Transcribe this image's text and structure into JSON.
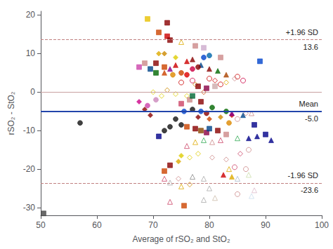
{
  "chart_data": {
    "type": "scatter",
    "xlabel": "Average of rSO₂ and StO₂",
    "ylabel": "rSO₂ - StO₂",
    "xlim": [
      50,
      100
    ],
    "ylim": [
      -32,
      21
    ],
    "xticks": [
      50,
      60,
      70,
      80,
      90,
      100
    ],
    "yticks": [
      -30,
      -20,
      -10,
      0,
      10,
      20
    ],
    "grid": false,
    "reference_lines": [
      {
        "y": 0,
        "color": "#c8a0a0",
        "line_style": "solid"
      },
      {
        "y": -5.0,
        "color": "#2244aa",
        "line_style": "solid",
        "label": "Mean",
        "value_label": "-5.0"
      },
      {
        "y": 13.6,
        "color": "#c08080",
        "line_style": "dashed",
        "label": "+1.96 SD",
        "value_label": "13.6"
      },
      {
        "y": -23.6,
        "color": "#c08080",
        "line_style": "dashed",
        "label": "-1.96 SD",
        "value_label": "-23.6"
      }
    ],
    "points": [
      {
        "x": 57.0,
        "y": -8.0,
        "marker": "circle",
        "color": "#111111"
      },
      {
        "x": 50.5,
        "y": -31.5,
        "marker": "square",
        "color": "#444444"
      },
      {
        "x": 67.5,
        "y": 6.5,
        "marker": "square",
        "color": "#cc44aa"
      },
      {
        "x": 68.5,
        "y": 7.5,
        "marker": "square",
        "color": "#cc8888"
      },
      {
        "x": 67.5,
        "y": -2.5,
        "marker": "diamond",
        "color": "#cc0088"
      },
      {
        "x": 68.5,
        "y": -4.5,
        "marker": "diamond",
        "color": "#880000"
      },
      {
        "x": 69.0,
        "y": -3.5,
        "marker": "circle",
        "color": "#cc44aa"
      },
      {
        "x": 70.5,
        "y": -2.0,
        "marker": "circle",
        "color": "#cc88bb"
      },
      {
        "x": 69.0,
        "y": 19.0,
        "marker": "square",
        "color": "#e8c000"
      },
      {
        "x": 72.5,
        "y": 18.0,
        "marker": "square",
        "color": "#880000"
      },
      {
        "x": 71.0,
        "y": 15.5,
        "marker": "square",
        "color": "#cc4400"
      },
      {
        "x": 72.5,
        "y": 14.5,
        "marker": "square",
        "color": "#cc0000"
      },
      {
        "x": 73.0,
        "y": 13.5,
        "marker": "square",
        "color": "#880000"
      },
      {
        "x": 75.0,
        "y": 13.0,
        "marker": "triangle-open",
        "color": "#ddaa00"
      },
      {
        "x": 77.5,
        "y": 12.0,
        "marker": "square",
        "color": "#cc8888"
      },
      {
        "x": 79.0,
        "y": 11.5,
        "marker": "square",
        "color": "#ccaacc"
      },
      {
        "x": 71.0,
        "y": 10.0,
        "marker": "diamond",
        "color": "#ddaa00"
      },
      {
        "x": 72.0,
        "y": 10.0,
        "marker": "diamond",
        "color": "#cc8800"
      },
      {
        "x": 74.0,
        "y": 9.0,
        "marker": "diamond",
        "color": "#ddcc00"
      },
      {
        "x": 79.0,
        "y": 9.0,
        "marker": "circle",
        "color": "#0044cc"
      },
      {
        "x": 80.0,
        "y": 9.5,
        "marker": "circle",
        "color": "#0066aa"
      },
      {
        "x": 82.0,
        "y": 9.0,
        "marker": "square",
        "color": "#cc8888"
      },
      {
        "x": 89.0,
        "y": 8.0,
        "marker": "square",
        "color": "#0044cc"
      },
      {
        "x": 76.0,
        "y": 8.0,
        "marker": "triangle",
        "color": "#cc0000"
      },
      {
        "x": 77.0,
        "y": 8.5,
        "marker": "triangle",
        "color": "#880000"
      },
      {
        "x": 78.5,
        "y": 7.0,
        "marker": "triangle",
        "color": "#004488"
      },
      {
        "x": 70.5,
        "y": 7.5,
        "marker": "square",
        "color": "#880000"
      },
      {
        "x": 72.0,
        "y": 6.5,
        "marker": "square",
        "color": "#cc4400"
      },
      {
        "x": 69.5,
        "y": 6.0,
        "marker": "square",
        "color": "#004488"
      },
      {
        "x": 70.5,
        "y": 5.0,
        "marker": "square",
        "color": "#006600"
      },
      {
        "x": 73.5,
        "y": 4.5,
        "marker": "circle",
        "color": "#dd8800"
      },
      {
        "x": 75.0,
        "y": 5.0,
        "marker": "circle",
        "color": "#cc4400"
      },
      {
        "x": 76.0,
        "y": 4.5,
        "marker": "circle",
        "color": "#dd0000"
      },
      {
        "x": 77.0,
        "y": 6.0,
        "marker": "circle",
        "color": "#cc0044"
      },
      {
        "x": 78.0,
        "y": 6.5,
        "marker": "circle",
        "color": "#880000"
      },
      {
        "x": 80.0,
        "y": 6.0,
        "marker": "triangle",
        "color": "#880000"
      },
      {
        "x": 81.5,
        "y": 5.5,
        "marker": "triangle",
        "color": "#006600"
      },
      {
        "x": 83.0,
        "y": 4.5,
        "marker": "triangle",
        "color": "#aa4400"
      },
      {
        "x": 85.0,
        "y": 4.0,
        "marker": "circle-open",
        "color": "#cc0000"
      },
      {
        "x": 86.0,
        "y": 3.0,
        "marker": "circle-open",
        "color": "#cc0044"
      },
      {
        "x": 72.0,
        "y": 5.0,
        "marker": "triangle",
        "color": "#cc4400"
      },
      {
        "x": 73.0,
        "y": 6.0,
        "marker": "triangle",
        "color": "#880088"
      },
      {
        "x": 74.0,
        "y": 7.0,
        "marker": "triangle",
        "color": "#cc0000"
      },
      {
        "x": 81.0,
        "y": 3.0,
        "marker": "diamond-open",
        "color": "#cc0000"
      },
      {
        "x": 83.0,
        "y": 2.5,
        "marker": "diamond-open",
        "color": "#ddaa00"
      },
      {
        "x": 84.5,
        "y": 3.5,
        "marker": "diamond-open",
        "color": "#cc8888"
      },
      {
        "x": 75.0,
        "y": 2.5,
        "marker": "circle-open",
        "color": "#cc0000"
      },
      {
        "x": 77.0,
        "y": 3.0,
        "marker": "circle-open",
        "color": "#cc0044"
      },
      {
        "x": 80.0,
        "y": 3.5,
        "marker": "circle-open",
        "color": "#cc0000"
      },
      {
        "x": 82.0,
        "y": 2.0,
        "marker": "circle-open",
        "color": "#cc0000"
      },
      {
        "x": 77.5,
        "y": 2.0,
        "marker": "diamond-open",
        "color": "#cc8800"
      },
      {
        "x": 79.0,
        "y": 0.0,
        "marker": "diamond-open",
        "color": "#cc4400"
      },
      {
        "x": 78.0,
        "y": 1.5,
        "marker": "square",
        "color": "#880000"
      },
      {
        "x": 79.5,
        "y": 1.0,
        "marker": "square",
        "color": "#880044"
      },
      {
        "x": 81.0,
        "y": 1.5,
        "marker": "square",
        "color": "#ccaaaa"
      },
      {
        "x": 70.0,
        "y": 0.0,
        "marker": "diamond-open",
        "color": "#ddcc00"
      },
      {
        "x": 71.5,
        "y": -1.0,
        "marker": "diamond-open",
        "color": "#ddcc00"
      },
      {
        "x": 72.5,
        "y": 0.5,
        "marker": "diamond-open",
        "color": "#cc8800"
      },
      {
        "x": 74.0,
        "y": -0.5,
        "marker": "diamond-open",
        "color": "#ddcc00"
      },
      {
        "x": 76.0,
        "y": -1.0,
        "marker": "diamond-open",
        "color": "#ddcc00"
      },
      {
        "x": 75.0,
        "y": -3.0,
        "marker": "square",
        "color": "#cc4466"
      },
      {
        "x": 76.5,
        "y": -2.0,
        "marker": "square",
        "color": "#cc8888"
      },
      {
        "x": 77.0,
        "y": -1.0,
        "marker": "square",
        "color": "#006633"
      },
      {
        "x": 78.5,
        "y": -2.5,
        "marker": "square",
        "color": "#880000"
      },
      {
        "x": 69.5,
        "y": -6.0,
        "marker": "diamond",
        "color": "#880000"
      },
      {
        "x": 75.5,
        "y": -5.0,
        "marker": "circle",
        "color": "#0044cc"
      },
      {
        "x": 77.0,
        "y": -4.5,
        "marker": "circle",
        "color": "#111111"
      },
      {
        "x": 78.5,
        "y": -5.0,
        "marker": "circle",
        "color": "#0044cc"
      },
      {
        "x": 79.5,
        "y": -5.5,
        "marker": "circle",
        "color": "#880000"
      },
      {
        "x": 80.5,
        "y": -4.0,
        "marker": "circle",
        "color": "#006600"
      },
      {
        "x": 78.0,
        "y": -6.5,
        "marker": "diamond",
        "color": "#880000"
      },
      {
        "x": 80.0,
        "y": -7.0,
        "marker": "diamond",
        "color": "#cc4400"
      },
      {
        "x": 82.0,
        "y": -6.5,
        "marker": "diamond",
        "color": "#cc8800"
      },
      {
        "x": 84.0,
        "y": -6.0,
        "marker": "diamond",
        "color": "#cc0000"
      },
      {
        "x": 86.5,
        "y": -5.5,
        "marker": "diamond-open",
        "color": "#cc8888"
      },
      {
        "x": 75.0,
        "y": -8.5,
        "marker": "circle",
        "color": "#111111"
      },
      {
        "x": 76.0,
        "y": -9.0,
        "marker": "square",
        "color": "#cc4400"
      },
      {
        "x": 77.5,
        "y": -9.5,
        "marker": "square",
        "color": "#880000"
      },
      {
        "x": 78.5,
        "y": -10.0,
        "marker": "square",
        "color": "#884400"
      },
      {
        "x": 79.5,
        "y": -10.5,
        "marker": "square",
        "color": "#880044"
      },
      {
        "x": 80.0,
        "y": -9.5,
        "marker": "square",
        "color": "#004488"
      },
      {
        "x": 81.5,
        "y": -10.0,
        "marker": "square",
        "color": "#880000"
      },
      {
        "x": 83.0,
        "y": -11.0,
        "marker": "square",
        "color": "#cc8888"
      },
      {
        "x": 71.0,
        "y": -11.5,
        "marker": "square",
        "color": "#000088"
      },
      {
        "x": 72.0,
        "y": -10.0,
        "marker": "circle",
        "color": "#111111"
      },
      {
        "x": 73.0,
        "y": -9.0,
        "marker": "circle",
        "color": "#111111"
      },
      {
        "x": 74.0,
        "y": -7.0,
        "marker": "circle",
        "color": "#111111"
      },
      {
        "x": 76.0,
        "y": -14.0,
        "marker": "triangle-open",
        "color": "#cc4466"
      },
      {
        "x": 77.5,
        "y": -13.0,
        "marker": "triangle-open",
        "color": "#ddaa00"
      },
      {
        "x": 79.0,
        "y": -12.5,
        "marker": "triangle-open",
        "color": "#33aa55"
      },
      {
        "x": 80.5,
        "y": -13.0,
        "marker": "triangle-open",
        "color": "#cc8888"
      },
      {
        "x": 82.0,
        "y": -12.5,
        "marker": "triangle-open",
        "color": "#cc4466"
      },
      {
        "x": 85.0,
        "y": -12.0,
        "marker": "triangle-open",
        "color": "#33aa55"
      },
      {
        "x": 87.0,
        "y": -12.0,
        "marker": "triangle",
        "color": "#000088"
      },
      {
        "x": 90.0,
        "y": -11.0,
        "marker": "square",
        "color": "#000088"
      },
      {
        "x": 91.0,
        "y": -12.5,
        "marker": "triangle",
        "color": "#000088"
      },
      {
        "x": 76.5,
        "y": -17.0,
        "marker": "diamond-open",
        "color": "#ddcc00"
      },
      {
        "x": 78.0,
        "y": -16.0,
        "marker": "diamond-open",
        "color": "#ddcc00"
      },
      {
        "x": 80.5,
        "y": -17.0,
        "marker": "diamond-open",
        "color": "#cc8888"
      },
      {
        "x": 83.0,
        "y": -17.5,
        "marker": "diamond-open",
        "color": "#cc8888"
      },
      {
        "x": 85.5,
        "y": -16.0,
        "marker": "diamond-open",
        "color": "#cc4466"
      },
      {
        "x": 87.0,
        "y": -15.0,
        "marker": "circle-open",
        "color": "#cc8888"
      },
      {
        "x": 72.0,
        "y": -20.5,
        "marker": "square",
        "color": "#cc4400"
      },
      {
        "x": 73.0,
        "y": -19.0,
        "marker": "square",
        "color": "#880000"
      },
      {
        "x": 74.5,
        "y": -18.0,
        "marker": "diamond",
        "color": "#ddaa00"
      },
      {
        "x": 75.0,
        "y": -16.5,
        "marker": "diamond",
        "color": "#ddcc00"
      },
      {
        "x": 72.0,
        "y": -22.5,
        "marker": "triangle-open",
        "color": "#cc4466"
      },
      {
        "x": 73.0,
        "y": -23.5,
        "marker": "triangle-open",
        "color": "#aaaaaa"
      },
      {
        "x": 75.0,
        "y": -24.5,
        "marker": "triangle-open",
        "color": "#ddaa00"
      },
      {
        "x": 77.0,
        "y": -22.0,
        "marker": "triangle-open",
        "color": "#888888"
      },
      {
        "x": 79.0,
        "y": -22.5,
        "marker": "triangle-open",
        "color": "#aaaaaa"
      },
      {
        "x": 80.0,
        "y": -25.0,
        "marker": "triangle-open",
        "color": "#aaaaaa"
      },
      {
        "x": 82.5,
        "y": -21.5,
        "marker": "triangle",
        "color": "#cc0000"
      },
      {
        "x": 84.0,
        "y": -22.0,
        "marker": "triangle",
        "color": "#ddaa00"
      },
      {
        "x": 85.0,
        "y": -22.5,
        "marker": "triangle-open",
        "color": "#aabbcc"
      },
      {
        "x": 87.0,
        "y": -21.5,
        "marker": "triangle-open",
        "color": "#ccddaa"
      },
      {
        "x": 73.0,
        "y": -28.5,
        "marker": "triangle-open",
        "color": "#cc4466"
      },
      {
        "x": 75.5,
        "y": -29.5,
        "marker": "square",
        "color": "#cc4400"
      },
      {
        "x": 79.0,
        "y": -28.0,
        "marker": "triangle-open",
        "color": "#aaaaaa"
      },
      {
        "x": 81.0,
        "y": -27.5,
        "marker": "triangle-open",
        "color": "#ccbbaa"
      },
      {
        "x": 85.0,
        "y": -26.5,
        "marker": "circle-open",
        "color": "#cc8888"
      },
      {
        "x": 87.5,
        "y": -27.0,
        "marker": "triangle-open",
        "color": "#ccddee"
      },
      {
        "x": 83.5,
        "y": -8.0,
        "marker": "circle",
        "color": "#dd8800"
      },
      {
        "x": 85.0,
        "y": -7.0,
        "marker": "circle-open",
        "color": "#cc8888"
      },
      {
        "x": 86.0,
        "y": -6.0,
        "marker": "triangle",
        "color": "#004488"
      },
      {
        "x": 84.0,
        "y": -5.5,
        "marker": "triangle",
        "color": "#880088"
      },
      {
        "x": 83.0,
        "y": -5.0,
        "marker": "circle",
        "color": "#006600"
      },
      {
        "x": 88.0,
        "y": -8.5,
        "marker": "square",
        "color": "#000088"
      },
      {
        "x": 88.5,
        "y": -11.5,
        "marker": "triangle",
        "color": "#000088"
      },
      {
        "x": 87.5,
        "y": -5.5,
        "marker": "triangle-open",
        "color": "#cc8888"
      },
      {
        "x": 86.5,
        "y": -20.0,
        "marker": "circle-open",
        "color": "#cc8888"
      },
      {
        "x": 84.5,
        "y": -19.5,
        "marker": "circle-open",
        "color": "#cc4466"
      },
      {
        "x": 83.5,
        "y": -20.0,
        "marker": "triangle-open",
        "color": "#ddaa00"
      },
      {
        "x": 88.0,
        "y": -25.5,
        "marker": "triangle-open",
        "color": "#ddbbcc"
      },
      {
        "x": 76.5,
        "y": -24.0,
        "marker": "diamond-open",
        "color": "#cc8800"
      },
      {
        "x": 74.5,
        "y": -22.5,
        "marker": "diamond-open",
        "color": "#cc8888"
      }
    ]
  }
}
